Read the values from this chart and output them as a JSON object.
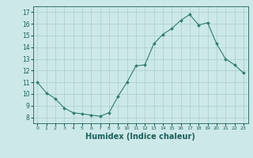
{
  "x": [
    0,
    1,
    2,
    3,
    4,
    5,
    6,
    7,
    8,
    9,
    10,
    11,
    12,
    13,
    14,
    15,
    16,
    17,
    18,
    19,
    20,
    21,
    22,
    23
  ],
  "y": [
    11.0,
    10.1,
    9.6,
    8.8,
    8.4,
    8.3,
    8.2,
    8.1,
    8.4,
    9.8,
    11.0,
    12.4,
    12.5,
    14.3,
    15.1,
    15.6,
    16.3,
    16.8,
    15.9,
    16.1,
    14.3,
    13.0,
    12.5,
    11.8
  ],
  "line_color": "#2e7d6e",
  "marker": "D",
  "marker_size": 2,
  "bg_color": "#cce8e8",
  "grid_color": "#aacccc",
  "xlabel": "Humidex (Indice chaleur)",
  "xlabel_fontsize": 7,
  "xlabel_color": "#1a5f5a",
  "tick_color": "#1a5f5a",
  "ylim": [
    7.5,
    17.5
  ],
  "xlim": [
    -0.5,
    23.5
  ],
  "yticks": [
    8,
    9,
    10,
    11,
    12,
    13,
    14,
    15,
    16,
    17
  ],
  "xticks": [
    0,
    1,
    2,
    3,
    4,
    5,
    6,
    7,
    8,
    9,
    10,
    11,
    12,
    13,
    14,
    15,
    16,
    17,
    18,
    19,
    20,
    21,
    22,
    23
  ],
  "xtick_labels": [
    "0",
    "1",
    "2",
    "3",
    "4",
    "5",
    "6",
    "7",
    "8",
    "9",
    "10",
    "11",
    "12",
    "13",
    "14",
    "15",
    "16",
    "17",
    "18",
    "19",
    "20",
    "21",
    "22",
    "23"
  ]
}
